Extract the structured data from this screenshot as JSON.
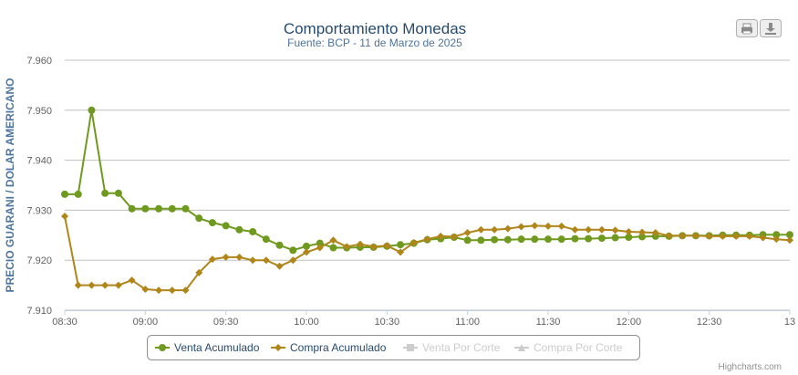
{
  "chart_data": {
    "type": "line",
    "title": "Comportamiento Monedas",
    "subtitle": "Fuente: BCP - 11 de Marzo de 2025",
    "ylabel": "PRECIO GUARANI / DOLAR AMERICANO",
    "xlabel": "",
    "ylim": [
      7910,
      7960
    ],
    "yticks": [
      7910,
      7920,
      7930,
      7940,
      7950,
      7960
    ],
    "ytick_labels": [
      "7.910",
      "7.920",
      "7.930",
      "7.940",
      "7.950",
      "7.960"
    ],
    "xlim_minutes": [
      510,
      780
    ],
    "xticks_minutes": [
      510,
      540,
      570,
      600,
      630,
      660,
      690,
      720,
      750,
      780
    ],
    "xtick_labels": [
      "08:30",
      "09:00",
      "09:30",
      "10:00",
      "10:30",
      "11:00",
      "11:30",
      "12:00",
      "12:30",
      "13"
    ],
    "grid": true,
    "legend_position": "bottom",
    "x_minutes": [
      510,
      515,
      520,
      525,
      530,
      535,
      540,
      545,
      550,
      555,
      560,
      565,
      570,
      575,
      580,
      585,
      590,
      595,
      600,
      605,
      610,
      615,
      620,
      625,
      630,
      635,
      640,
      645,
      650,
      655,
      660,
      665,
      670,
      675,
      680,
      685,
      690,
      695,
      700,
      705,
      710,
      715,
      720,
      725,
      730,
      735,
      740,
      745,
      750,
      755,
      760,
      765,
      770,
      775,
      780
    ],
    "series": [
      {
        "name": "Venta Acumulado",
        "color": "#6f9a1f",
        "marker": "circle",
        "visible": true,
        "values": [
          7933.2,
          7933.2,
          7950.0,
          7933.4,
          7933.4,
          7930.3,
          7930.3,
          7930.3,
          7930.3,
          7930.3,
          7928.4,
          7927.5,
          7926.9,
          7926.1,
          7925.7,
          7924.2,
          7923.0,
          7922.0,
          7922.8,
          7923.4,
          7922.5,
          7922.5,
          7922.6,
          7922.6,
          7922.8,
          7923.1,
          7923.4,
          7924.1,
          7924.3,
          7924.6,
          7924.0,
          7924.0,
          7924.1,
          7924.1,
          7924.2,
          7924.2,
          7924.2,
          7924.2,
          7924.3,
          7924.3,
          7924.4,
          7924.5,
          7924.6,
          7924.7,
          7924.8,
          7924.8,
          7924.9,
          7924.9,
          7924.9,
          7925.0,
          7925.0,
          7925.0,
          7925.1,
          7925.1,
          7925.1
        ]
      },
      {
        "name": "Compra Acumulado",
        "color": "#b0861a",
        "marker": "diamond",
        "visible": true,
        "values": [
          7928.8,
          7915.0,
          7915.0,
          7915.0,
          7915.0,
          7916.0,
          7914.2,
          7914.0,
          7914.0,
          7914.0,
          7917.5,
          7920.2,
          7920.6,
          7920.6,
          7920.0,
          7920.0,
          7918.8,
          7920.0,
          7921.6,
          7922.5,
          7924.0,
          7922.7,
          7923.2,
          7922.7,
          7922.9,
          7921.6,
          7923.5,
          7924.2,
          7924.8,
          7924.7,
          7925.5,
          7926.1,
          7926.1,
          7926.3,
          7926.7,
          7926.9,
          7926.8,
          7926.8,
          7926.1,
          7926.1,
          7926.1,
          7926.0,
          7925.7,
          7925.6,
          7925.5,
          7924.9,
          7924.9,
          7924.9,
          7924.8,
          7924.8,
          7924.8,
          7924.8,
          7924.5,
          7924.2,
          7924.0
        ]
      },
      {
        "name": "Venta Por Corte",
        "marker": "square",
        "visible": false,
        "values": []
      },
      {
        "name": "Compra Por Corte",
        "marker": "triangle",
        "visible": false,
        "values": []
      }
    ],
    "credits": "Highcharts.com"
  },
  "buttons": {
    "print_icon": "printer-icon",
    "export_icon": "download-icon"
  }
}
